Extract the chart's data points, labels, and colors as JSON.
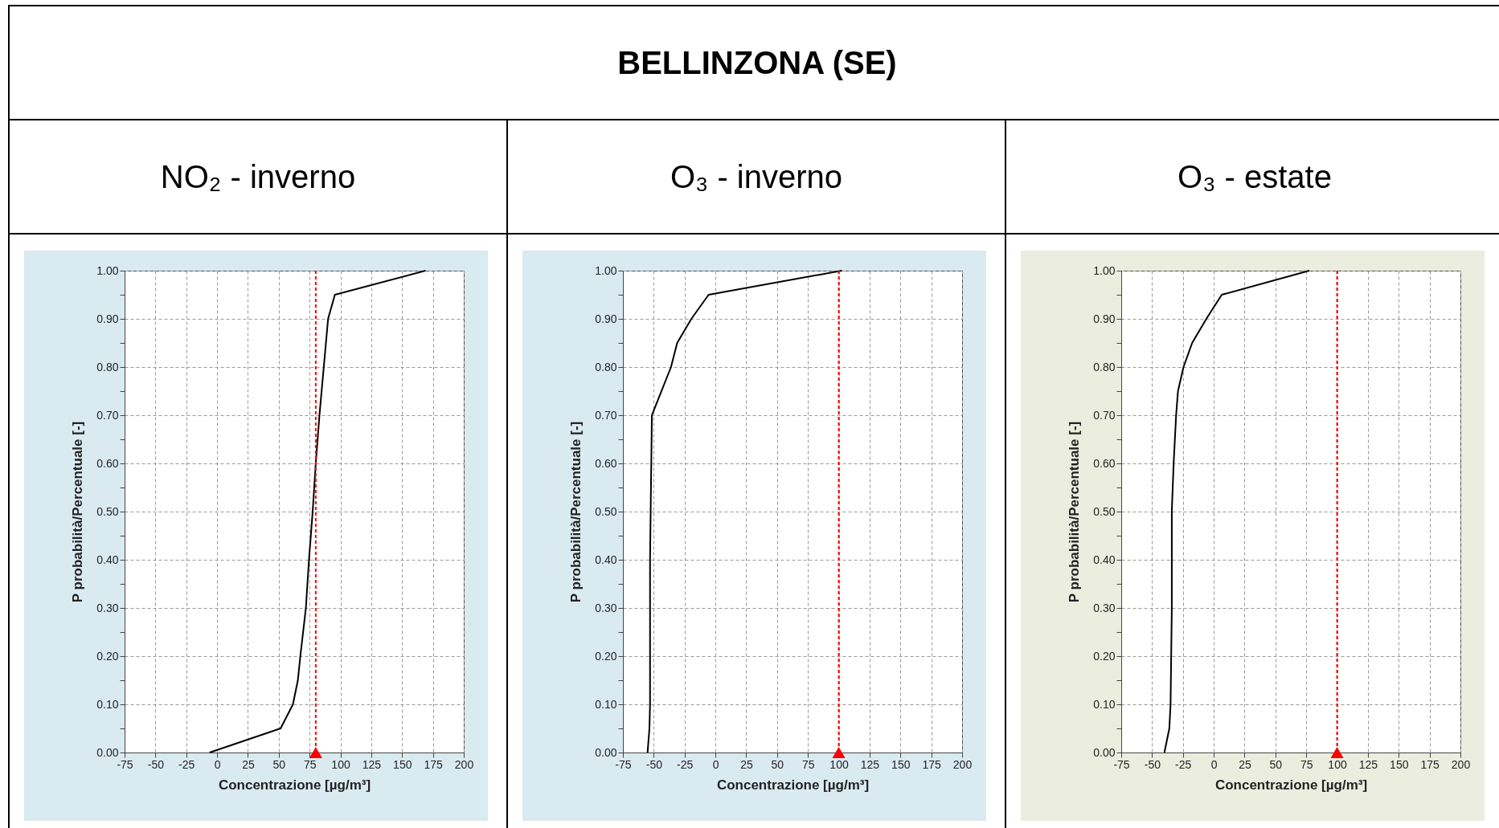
{
  "chart_data": [
    {
      "type": "line",
      "title": "NO₂ - inverno",
      "annotations": [
        "BELLINZONA (SE)"
      ],
      "xlabel": "Concentrazione [µg/m³]",
      "ylabel": "P probabilità/Percentuale [-]",
      "xlim": [
        -75,
        200
      ],
      "xticks": [
        -75,
        -50,
        -25,
        0,
        25,
        50,
        75,
        100,
        125,
        150,
        175,
        200
      ],
      "ylim": [
        0,
        1
      ],
      "yticks": [
        {
          "value": 0,
          "label": "0.00"
        },
        {
          "value": 0.05,
          "label": null
        },
        {
          "value": 0.1,
          "label": "0.10"
        },
        {
          "value": 0.15,
          "label": null
        },
        {
          "value": 0.2,
          "label": "0.20"
        },
        {
          "value": 0.25,
          "label": null
        },
        {
          "value": 0.3,
          "label": "0.30"
        },
        {
          "value": 0.35,
          "label": null
        },
        {
          "value": 0.4,
          "label": "0.40"
        },
        {
          "value": 0.45,
          "label": null
        },
        {
          "value": 0.5,
          "label": "0.50"
        },
        {
          "value": 0.55,
          "label": null
        },
        {
          "value": 0.6,
          "label": "0.60"
        },
        {
          "value": 0.65,
          "label": null
        },
        {
          "value": 0.7,
          "label": "0.70"
        },
        {
          "value": 0.75,
          "label": null
        },
        {
          "value": 0.8,
          "label": "0.80"
        },
        {
          "value": 0.85,
          "label": null
        },
        {
          "value": 0.9,
          "label": "0.90"
        },
        {
          "value": 0.95,
          "label": null
        },
        {
          "value": 1,
          "label": "1.00"
        }
      ],
      "grid": true,
      "series": [
        {
          "color": "#000000",
          "x": [
            -6,
            51.5,
            61.5,
            65.5,
            67.5,
            72,
            74.5,
            77.5,
            80,
            83,
            86.5,
            90,
            95.5,
            169
          ],
          "values": [
            0,
            0.05,
            0.1,
            0.15,
            0.2,
            0.3,
            0.4,
            0.5,
            0.6,
            0.7,
            0.8,
            0.9,
            0.95,
            1
          ]
        },
        {
          "type": "scatter",
          "marker": "triangle",
          "color": "#ff0000",
          "x": [
            80
          ],
          "values": [
            0
          ]
        }
      ],
      "ref_lines": [
        {
          "axis": "x",
          "value": 80,
          "color": "#ff0000",
          "line_style": "dashed"
        }
      ]
    },
    {
      "type": "line",
      "title": "O₃ - inverno",
      "xlabel": "Concentrazione [µg/m³]",
      "ylabel": "P probabilità/Percentuale [-]",
      "xlim": [
        -75,
        200
      ],
      "xticks": [
        -75,
        -50,
        -25,
        0,
        25,
        50,
        75,
        100,
        125,
        150,
        175,
        200
      ],
      "ylim": [
        0,
        1
      ],
      "yticks": [
        {
          "value": 0,
          "label": "0.00"
        },
        {
          "value": 0.05,
          "label": null
        },
        {
          "value": 0.1,
          "label": "0.10"
        },
        {
          "value": 0.15,
          "label": null
        },
        {
          "value": 0.2,
          "label": "0.20"
        },
        {
          "value": 0.25,
          "label": null
        },
        {
          "value": 0.3,
          "label": "0.30"
        },
        {
          "value": 0.35,
          "label": null
        },
        {
          "value": 0.4,
          "label": "0.40"
        },
        {
          "value": 0.45,
          "label": null
        },
        {
          "value": 0.5,
          "label": "0.50"
        },
        {
          "value": 0.55,
          "label": null
        },
        {
          "value": 0.6,
          "label": "0.60"
        },
        {
          "value": 0.65,
          "label": null
        },
        {
          "value": 0.7,
          "label": "0.70"
        },
        {
          "value": 0.75,
          "label": null
        },
        {
          "value": 0.8,
          "label": "0.80"
        },
        {
          "value": 0.85,
          "label": null
        },
        {
          "value": 0.9,
          "label": "0.90"
        },
        {
          "value": 0.95,
          "label": null
        },
        {
          "value": 1,
          "label": "1.00"
        }
      ],
      "grid": true,
      "series": [
        {
          "color": "#000000",
          "x": [
            -55,
            -53.5,
            -53,
            -53,
            -53,
            -52.5,
            -52,
            -51.5,
            -36,
            -31,
            -19.5,
            -5.5,
            102.5
          ],
          "values": [
            0,
            0.05,
            0.1,
            0.2,
            0.4,
            0.5,
            0.6,
            0.7,
            0.8,
            0.85,
            0.9,
            0.95,
            1
          ]
        },
        {
          "type": "scatter",
          "marker": "triangle",
          "color": "#ff0000",
          "x": [
            100
          ],
          "values": [
            0
          ]
        }
      ],
      "ref_lines": [
        {
          "axis": "x",
          "value": 100,
          "color": "#ff0000",
          "line_style": "dashed"
        }
      ]
    },
    {
      "type": "line",
      "title": "O₃ - estate",
      "xlabel": "Concentrazione [µg/m³]",
      "ylabel": "P probabilità/Percentuale [-]",
      "xlim": [
        -75,
        200
      ],
      "xticks": [
        -75,
        -50,
        -25,
        0,
        25,
        50,
        75,
        100,
        125,
        150,
        175,
        200
      ],
      "ylim": [
        0,
        1
      ],
      "yticks": [
        {
          "value": 0,
          "label": "0.00"
        },
        {
          "value": 0.05,
          "label": null
        },
        {
          "value": 0.1,
          "label": "0.10"
        },
        {
          "value": 0.15,
          "label": null
        },
        {
          "value": 0.2,
          "label": "0.20"
        },
        {
          "value": 0.25,
          "label": null
        },
        {
          "value": 0.3,
          "label": "0.30"
        },
        {
          "value": 0.35,
          "label": null
        },
        {
          "value": 0.4,
          "label": "0.40"
        },
        {
          "value": 0.45,
          "label": null
        },
        {
          "value": 0.5,
          "label": "0.50"
        },
        {
          "value": 0.55,
          "label": null
        },
        {
          "value": 0.6,
          "label": "0.60"
        },
        {
          "value": 0.65,
          "label": null
        },
        {
          "value": 0.7,
          "label": "0.70"
        },
        {
          "value": 0.75,
          "label": null
        },
        {
          "value": 0.8,
          "label": "0.80"
        },
        {
          "value": 0.85,
          "label": null
        },
        {
          "value": 0.9,
          "label": "0.90"
        },
        {
          "value": 0.95,
          "label": null
        },
        {
          "value": 1,
          "label": "1.00"
        }
      ],
      "grid": true,
      "series": [
        {
          "color": "#000000",
          "x": [
            -40,
            -36,
            -35,
            -34.5,
            -34,
            -34,
            -34,
            -32.5,
            -30.5,
            -29,
            -24.5,
            -17.5,
            -6,
            6.5,
            77.5
          ],
          "values": [
            0,
            0.05,
            0.1,
            0.2,
            0.3,
            0.4,
            0.5,
            0.6,
            0.7,
            0.75,
            0.8,
            0.85,
            0.9,
            0.95,
            1
          ]
        },
        {
          "type": "scatter",
          "marker": "triangle",
          "color": "#ff0000",
          "x": [
            100
          ],
          "values": [
            0
          ]
        }
      ],
      "ref_lines": [
        {
          "axis": "x",
          "value": 100,
          "color": "#ff0000",
          "line_style": "dashed"
        }
      ]
    }
  ]
}
